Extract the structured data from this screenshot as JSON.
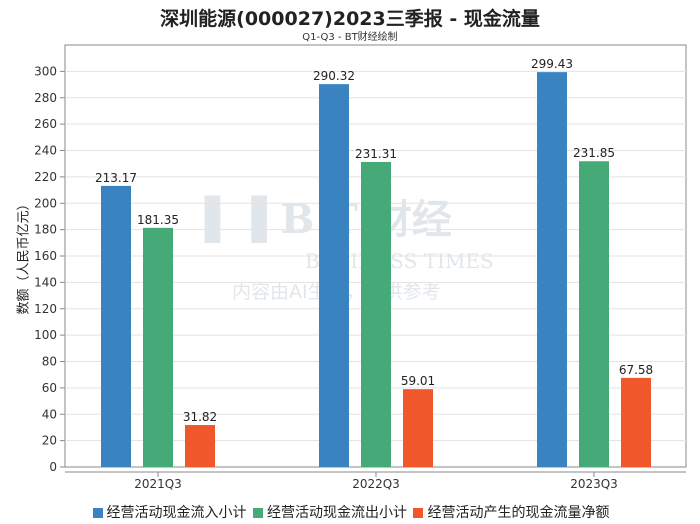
{
  "chart_data": {
    "type": "bar",
    "title": "深圳能源(000027)2023三季报 - 现金流量",
    "subtitle": "Q1-Q3 - BT财经绘制",
    "ylabel": "数额（人民币亿元）",
    "xlabel": "",
    "ylim": [
      0,
      320
    ],
    "yticks": [
      0,
      20,
      40,
      60,
      80,
      100,
      120,
      140,
      160,
      180,
      200,
      220,
      240,
      260,
      280,
      300
    ],
    "categories": [
      "2021Q3",
      "2022Q3",
      "2023Q3"
    ],
    "series": [
      {
        "name": "经营活动现金流入小计",
        "color": "#3a83c1",
        "values": [
          213.17,
          290.32,
          299.43
        ]
      },
      {
        "name": "经营活动现金流出小计",
        "color": "#45aa78",
        "values": [
          181.35,
          231.31,
          231.85
        ]
      },
      {
        "name": "经营活动产生的现金流量净额",
        "color": "#f0572a",
        "values": [
          31.82,
          59.01,
          67.58
        ]
      }
    ],
    "grid": true,
    "legend_position": "bottom"
  },
  "watermark": {
    "logo": "BT财经",
    "sub": "BUSINESS TIMES",
    "note": "内容由AI生成，仅供参考"
  }
}
